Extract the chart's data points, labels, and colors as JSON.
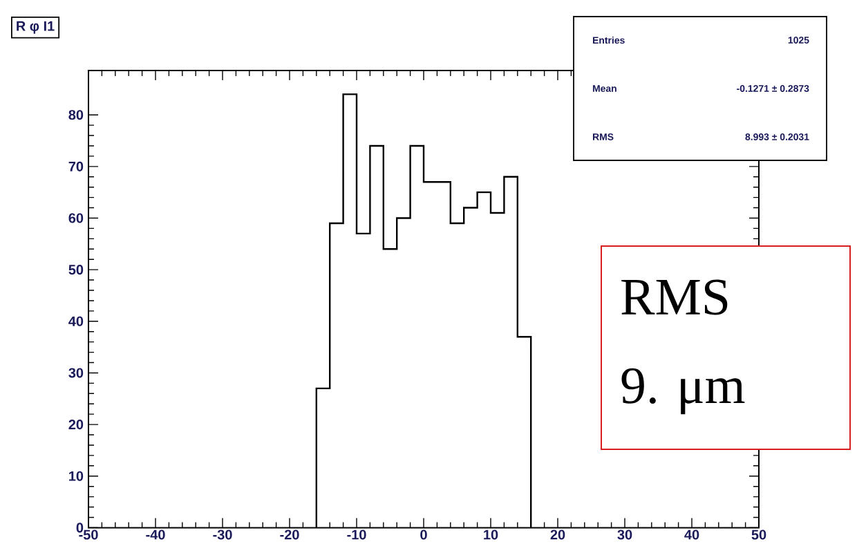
{
  "chart_data": {
    "type": "histogram",
    "title": "R φ I1",
    "bins": [
      -16,
      -14,
      -12,
      -10,
      -8,
      -6,
      -4,
      -2,
      0,
      2,
      4,
      6,
      8,
      10,
      12,
      14,
      16
    ],
    "values": [
      27,
      59,
      84,
      57,
      74,
      54,
      60,
      74,
      67,
      67,
      59,
      62,
      65,
      61,
      68,
      37
    ],
    "color": "#000000",
    "xlim": [
      -50,
      50
    ],
    "xticks": [
      -50,
      -40,
      -30,
      -20,
      -10,
      0,
      10,
      20,
      30,
      40,
      50
    ],
    "ylim": [
      0,
      88.6
    ],
    "yticks": [
      0,
      10,
      20,
      30,
      40,
      50,
      60,
      70,
      80
    ],
    "grid": false,
    "annotations": [
      "Entries",
      "1025",
      "Mean",
      "-0.1271 ± 0.2873",
      "RMS",
      "8.993 ± 0.2031",
      "RMS",
      "9. μm"
    ]
  }
}
